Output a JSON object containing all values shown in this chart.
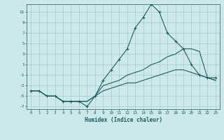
{
  "xlabel": "Humidex (Indice chaleur)",
  "bg_color": "#cce8e8",
  "grid_color": "#aacccc",
  "line_color": "#1a6060",
  "xlim": [
    -0.5,
    23.5
  ],
  "ylim": [
    -7.5,
    12.5
  ],
  "xticks": [
    0,
    1,
    2,
    3,
    4,
    5,
    6,
    7,
    8,
    9,
    10,
    11,
    12,
    13,
    14,
    15,
    16,
    17,
    18,
    19,
    20,
    21,
    22,
    23
  ],
  "yticks": [
    -7,
    -5,
    -3,
    -1,
    1,
    3,
    5,
    7,
    9,
    11
  ],
  "line1_x": [
    0,
    1,
    2,
    3,
    4,
    5,
    6,
    7,
    8,
    9,
    10,
    11,
    12,
    13,
    14,
    15,
    16,
    17,
    18,
    19,
    20,
    21,
    22,
    23
  ],
  "line1_y": [
    -4,
    -4,
    -5,
    -5,
    -6,
    -6,
    -6,
    -7,
    -5,
    -2,
    0,
    2,
    4,
    8,
    10,
    12.5,
    11,
    7,
    5.5,
    4,
    1,
    -1,
    -1.5,
    -1.5
  ],
  "line2_x": [
    0,
    1,
    2,
    3,
    4,
    5,
    6,
    7,
    8,
    9,
    10,
    11,
    12,
    13,
    14,
    15,
    16,
    17,
    18,
    19,
    20,
    21,
    22,
    23
  ],
  "line2_y": [
    -4,
    -4,
    -5,
    -5,
    -6,
    -6,
    -6,
    -6,
    -5,
    -4,
    -3.5,
    -3,
    -2.5,
    -2.5,
    -2,
    -1.5,
    -1,
    -0.5,
    0,
    0,
    -0.5,
    -1,
    -1.5,
    -2
  ],
  "line3_x": [
    0,
    1,
    2,
    3,
    4,
    5,
    6,
    7,
    8,
    9,
    10,
    11,
    12,
    13,
    14,
    15,
    16,
    17,
    18,
    19,
    20,
    21,
    22,
    23
  ],
  "line3_y": [
    -4,
    -4,
    -5,
    -5,
    -6,
    -6,
    -6,
    -6,
    -5,
    -3,
    -2.5,
    -2,
    -1,
    -0.5,
    0,
    1,
    1.5,
    2.5,
    3,
    4,
    4,
    3.5,
    -1.5,
    -2
  ]
}
